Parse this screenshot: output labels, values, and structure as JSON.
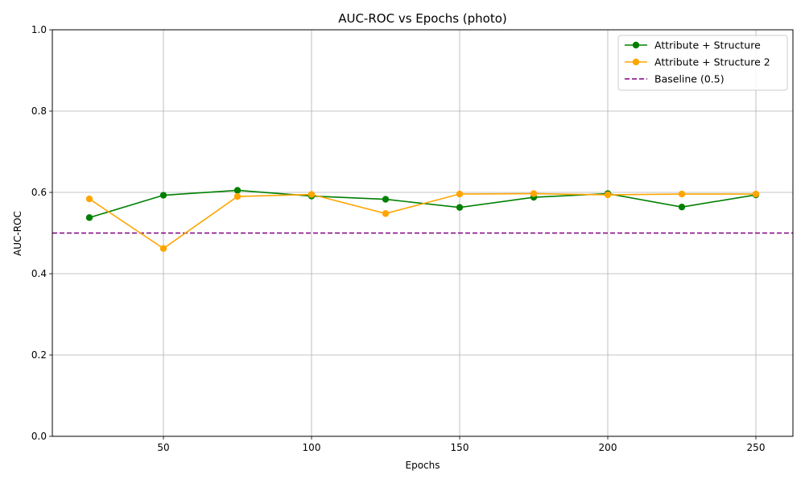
{
  "chart_data": {
    "type": "line",
    "title": "AUC-ROC vs Epochs (photo)",
    "xlabel": "Epochs",
    "ylabel": "AUC-ROC",
    "xlim": [
      12.5,
      262.5
    ],
    "ylim": [
      0.0,
      1.0
    ],
    "xticks": [
      50,
      100,
      150,
      200,
      250
    ],
    "yticks": [
      0.0,
      0.2,
      0.4,
      0.6,
      0.8,
      1.0
    ],
    "ytick_labels": [
      "0.0",
      "0.2",
      "0.4",
      "0.6",
      "0.8",
      "1.0"
    ],
    "grid": true,
    "legend_position": "top-right",
    "x": [
      25,
      50,
      75,
      100,
      125,
      150,
      175,
      200,
      225,
      250
    ],
    "series": [
      {
        "name": "Attribute + Structure",
        "color": "#008000",
        "style": "solid",
        "marker": "circle",
        "values": [
          0.538,
          0.593,
          0.605,
          0.591,
          0.583,
          0.563,
          0.588,
          0.597,
          0.564,
          0.594
        ]
      },
      {
        "name": "Attribute + Structure 2",
        "color": "#FFA500",
        "style": "solid",
        "marker": "circle",
        "values": [
          0.584,
          0.462,
          0.59,
          0.595,
          0.548,
          0.596,
          0.597,
          0.594,
          0.596,
          0.596
        ]
      }
    ],
    "baseline": {
      "name": "Baseline (0.5)",
      "value": 0.5,
      "color": "#800080",
      "style": "dashed"
    }
  }
}
